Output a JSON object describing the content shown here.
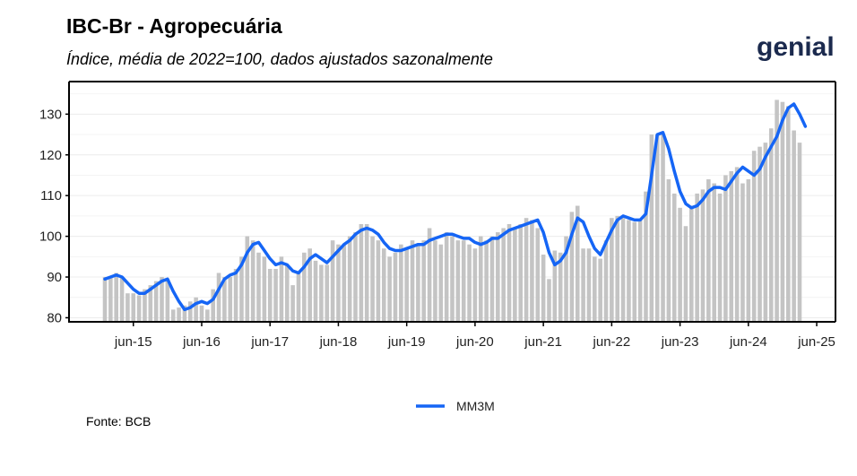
{
  "header": {
    "title": "IBC-Br - Agropecuária",
    "subtitle": "Índice, média de 2022=100, dados ajustados sazonalmente",
    "logo_text": "genial"
  },
  "footer": {
    "source": "Fonte: BCB"
  },
  "colors": {
    "bar": "#c4c4c4",
    "line": "#1565f5",
    "grid": "#ececec",
    "axis": "#000000",
    "logo": "#1b2a4e"
  },
  "chart_data": {
    "type": "bar",
    "title": "IBC-Br - Agropecuária",
    "subtitle": "Índice, média de 2022=100, dados ajustados sazonalmente",
    "xlabel": "",
    "ylabel": "",
    "ylim": [
      79,
      138
    ],
    "y_ticks": [
      80,
      90,
      100,
      110,
      120,
      130
    ],
    "x_tick_labels": [
      "jun-15",
      "jun-16",
      "jun-17",
      "jun-18",
      "jun-19",
      "jun-20",
      "jun-21",
      "jun-22",
      "jun-23",
      "jun-24",
      "jun-25"
    ],
    "x_start": "2015-01",
    "x_end": "2025-06",
    "grid": true,
    "legend_position": "bottom",
    "series": [
      {
        "type": "bar",
        "values": [
          90,
          90,
          91,
          90,
          86,
          86,
          85.5,
          87,
          88,
          89,
          90,
          89.5,
          82,
          82.5,
          83,
          84,
          85,
          83,
          82,
          87,
          91,
          90,
          90,
          92,
          95,
          100,
          99,
          96,
          95,
          92,
          92,
          95,
          93,
          88,
          91,
          96,
          97,
          94,
          93,
          93,
          99,
          98,
          98,
          100,
          101,
          103,
          103,
          100,
          99,
          97,
          95,
          96,
          98,
          97,
          99,
          98,
          99,
          102,
          99,
          98,
          101,
          100,
          99,
          99,
          98,
          97,
          100,
          99,
          100,
          101,
          102,
          103,
          102,
          103,
          104.5,
          104,
          102,
          95.5,
          89.5,
          96.5,
          96,
          100,
          106,
          107.5,
          97,
          97,
          95,
          94.5,
          99,
          104.5,
          105,
          104.5,
          104,
          103.5,
          104,
          111,
          125,
          125,
          125,
          114,
          110.5,
          107,
          102.5,
          107.5,
          110.5,
          111.5,
          114,
          113,
          110.5,
          115,
          116,
          117,
          113,
          114,
          121,
          122,
          123,
          126.5,
          133.5,
          133,
          132,
          126,
          123
        ]
      },
      {
        "type": "line",
        "name": "MM3M",
        "values": [
          89.5,
          90,
          90.5,
          90,
          88.5,
          87,
          86,
          86,
          87,
          88,
          89,
          89.5,
          86.5,
          84,
          82,
          82.5,
          83.5,
          84,
          83.5,
          84.5,
          87,
          89.5,
          90.5,
          91,
          93,
          96,
          98,
          98.5,
          96.5,
          94.5,
          93,
          93.5,
          93,
          91.5,
          91,
          92.5,
          94.5,
          95.5,
          94.5,
          93.5,
          95,
          96.5,
          98,
          99,
          100.5,
          101.5,
          102,
          101.5,
          100.5,
          98.5,
          97,
          96.5,
          96.5,
          97,
          97.5,
          98,
          98,
          99,
          99.5,
          100,
          100.5,
          100.5,
          100,
          99.5,
          99.5,
          98.5,
          98,
          98.5,
          99.5,
          99.5,
          100.5,
          101.5,
          102,
          102.5,
          103,
          103.5,
          104,
          101,
          96,
          93,
          94,
          96,
          100.5,
          104.5,
          103.5,
          100,
          97,
          95.5,
          98.5,
          101.5,
          104,
          105,
          104.5,
          104,
          104,
          105.5,
          115,
          125,
          125.5,
          121.5,
          116,
          111,
          108,
          107,
          107.5,
          109,
          111,
          112,
          112,
          111.5,
          113.5,
          115.5,
          117,
          116,
          115,
          116.5,
          119.5,
          122,
          124.5,
          128.5,
          131.5,
          132.5,
          130,
          127
        ]
      }
    ]
  }
}
